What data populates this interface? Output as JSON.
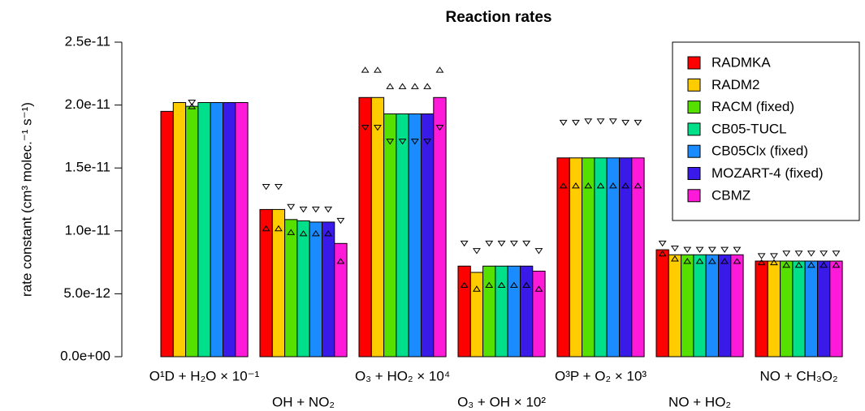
{
  "chart_data": {
    "type": "bar",
    "title": "Reaction rates",
    "y_label": "rate constant (cm³ molec.⁻¹ s⁻¹)",
    "categories": [
      "O¹D + H₂O × 10⁻¹",
      "OH + NO₂",
      "O₃ + HO₂ × 10⁴",
      "O₃ + OH × 10²",
      "O³P + O₂ × 10³",
      "NO + HO₂",
      "NO + CH₃O₂"
    ],
    "ylim": [
      0,
      2.5e-11
    ],
    "yticks": [
      {
        "value": 0,
        "label": "0.0e+00"
      },
      {
        "value": 5e-12,
        "label": "5.0e-12"
      },
      {
        "value": 1e-11,
        "label": "1.0e-11"
      },
      {
        "value": 1.5e-11,
        "label": "1.5e-11"
      },
      {
        "value": 2e-11,
        "label": "2.0e-11"
      },
      {
        "value": 2.5e-11,
        "label": "2.5e-11"
      }
    ],
    "legend_position": "top-right",
    "series": [
      {
        "name": "RADMKA",
        "color": "#ff0000",
        "values": [
          1.95e-11,
          1.17e-11,
          2.06e-11,
          7.2e-12,
          1.58e-11,
          8.5e-12,
          7.6e-12
        ],
        "tri_up": [
          null,
          1.02e-11,
          2.28e-11,
          5.7e-12,
          1.36e-11,
          8.2e-12,
          7.5e-12
        ],
        "tri_down": [
          null,
          1.35e-11,
          1.82e-11,
          9e-12,
          1.86e-11,
          9e-12,
          8e-12
        ]
      },
      {
        "name": "RADM2",
        "color": "#ffcc00",
        "values": [
          2.02e-11,
          1.17e-11,
          2.06e-11,
          6.7e-12,
          1.58e-11,
          8.1e-12,
          7.6e-12
        ],
        "tri_up": [
          null,
          1.02e-11,
          2.28e-11,
          5.4e-12,
          1.36e-11,
          7.8e-12,
          7.5e-12
        ],
        "tri_down": [
          null,
          1.35e-11,
          1.82e-11,
          8.4e-12,
          1.86e-11,
          8.6e-12,
          8e-12
        ]
      },
      {
        "name": "RACM (fixed)",
        "color": "#55e000",
        "values": [
          1.99e-11,
          1.09e-11,
          1.93e-11,
          7.2e-12,
          1.58e-11,
          8.1e-12,
          7.6e-12
        ],
        "tri_up": [
          1.99e-11,
          9.9e-12,
          2.15e-11,
          5.7e-12,
          1.36e-11,
          7.6e-12,
          7.3e-12
        ],
        "tri_down": [
          2.02e-11,
          1.19e-11,
          1.71e-11,
          9e-12,
          1.87e-11,
          8.5e-12,
          8.2e-12
        ]
      },
      {
        "name": "CB05-TUCL",
        "color": "#00e08a",
        "values": [
          2.02e-11,
          1.08e-11,
          1.93e-11,
          7.2e-12,
          1.58e-11,
          8.1e-12,
          7.6e-12
        ],
        "tri_up": [
          null,
          9.8e-12,
          2.15e-11,
          5.7e-12,
          1.36e-11,
          7.6e-12,
          7.3e-12
        ],
        "tri_down": [
          null,
          1.17e-11,
          1.71e-11,
          9e-12,
          1.87e-11,
          8.5e-12,
          8.2e-12
        ]
      },
      {
        "name": "CB05Clx (fixed)",
        "color": "#1a8cff",
        "values": [
          2.02e-11,
          1.07e-11,
          1.93e-11,
          7.2e-12,
          1.58e-11,
          8.1e-12,
          7.6e-12
        ],
        "tri_up": [
          null,
          9.8e-12,
          2.15e-11,
          5.7e-12,
          1.36e-11,
          7.6e-12,
          7.3e-12
        ],
        "tri_down": [
          null,
          1.17e-11,
          1.71e-11,
          9e-12,
          1.87e-11,
          8.5e-12,
          8.2e-12
        ]
      },
      {
        "name": "MOZART-4 (fixed)",
        "color": "#3a1ae8",
        "values": [
          2.02e-11,
          1.07e-11,
          1.93e-11,
          7.2e-12,
          1.58e-11,
          8.1e-12,
          7.6e-12
        ],
        "tri_up": [
          null,
          9.8e-12,
          2.15e-11,
          5.7e-12,
          1.36e-11,
          7.6e-12,
          7.3e-12
        ],
        "tri_down": [
          null,
          1.17e-11,
          1.71e-11,
          9e-12,
          1.86e-11,
          8.5e-12,
          8.2e-12
        ]
      },
      {
        "name": "CBMZ",
        "color": "#ff1ad9",
        "values": [
          2.02e-11,
          9e-12,
          2.06e-11,
          6.8e-12,
          1.58e-11,
          8.1e-12,
          7.6e-12
        ],
        "tri_up": [
          null,
          7.6e-12,
          2.28e-11,
          5.4e-12,
          1.36e-11,
          7.6e-12,
          7.3e-12
        ],
        "tri_down": [
          null,
          1.08e-11,
          1.82e-11,
          8.4e-12,
          1.86e-11,
          8.5e-12,
          8.2e-12
        ]
      }
    ]
  }
}
